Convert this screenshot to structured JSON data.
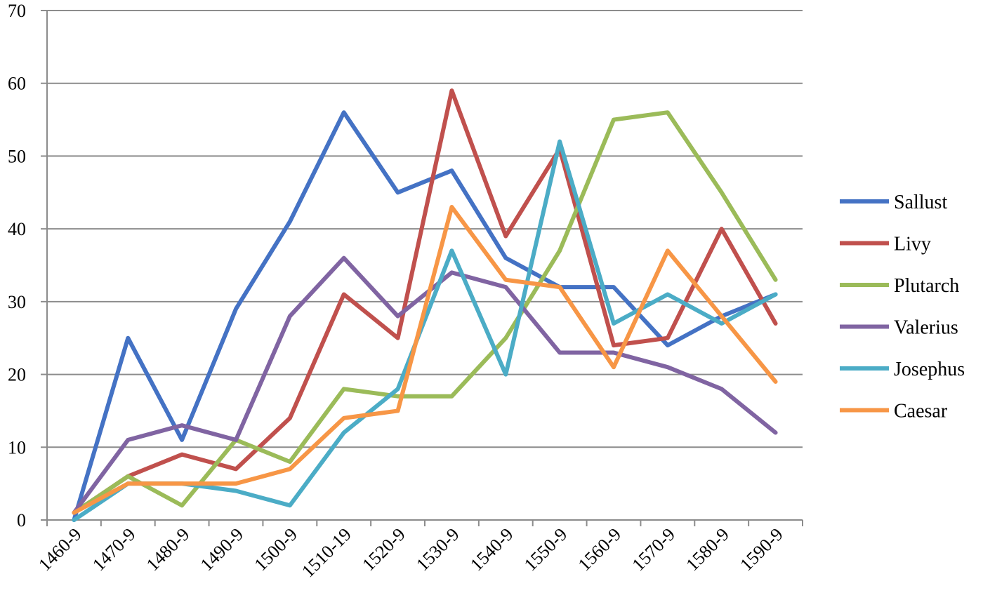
{
  "chart_data": {
    "type": "line",
    "title": "",
    "xlabel": "",
    "ylabel": "",
    "categories": [
      "1460-9",
      "1470-9",
      "1480-9",
      "1490-9",
      "1500-9",
      "1510-19",
      "1520-9",
      "1530-9",
      "1540-9",
      "1550-9",
      "1560-9",
      "1570-9",
      "1580-9",
      "1590-9"
    ],
    "ylim": [
      0,
      70
    ],
    "yticks": [
      "0",
      "10",
      "20",
      "30",
      "40",
      "50",
      "60",
      "70"
    ],
    "grid": true,
    "legend_position": "right",
    "series": [
      {
        "name": "Sallust",
        "color": "#4472C4",
        "values": [
          0,
          25,
          11,
          29,
          41,
          56,
          45,
          48,
          36,
          32,
          32,
          24,
          28,
          31
        ]
      },
      {
        "name": "Livy",
        "color": "#C0504D",
        "values": [
          1,
          6,
          9,
          7,
          14,
          31,
          25,
          59,
          39,
          51,
          24,
          25,
          40,
          27
        ]
      },
      {
        "name": "Plutarch",
        "color": "#9BBB59",
        "values": [
          1,
          6,
          2,
          11,
          8,
          18,
          17,
          17,
          25,
          37,
          55,
          56,
          45,
          33
        ]
      },
      {
        "name": "Valerius",
        "color": "#8064A2",
        "values": [
          1,
          11,
          13,
          11,
          28,
          36,
          28,
          34,
          32,
          23,
          23,
          21,
          18,
          12
        ]
      },
      {
        "name": "Josephus",
        "color": "#4BACC6",
        "values": [
          0,
          5,
          5,
          4,
          2,
          12,
          18,
          37,
          20,
          52,
          27,
          31,
          27,
          31
        ]
      },
      {
        "name": "Caesar",
        "color": "#F79646",
        "values": [
          1,
          5,
          5,
          5,
          7,
          14,
          15,
          43,
          33,
          32,
          21,
          37,
          28,
          19
        ]
      }
    ]
  }
}
